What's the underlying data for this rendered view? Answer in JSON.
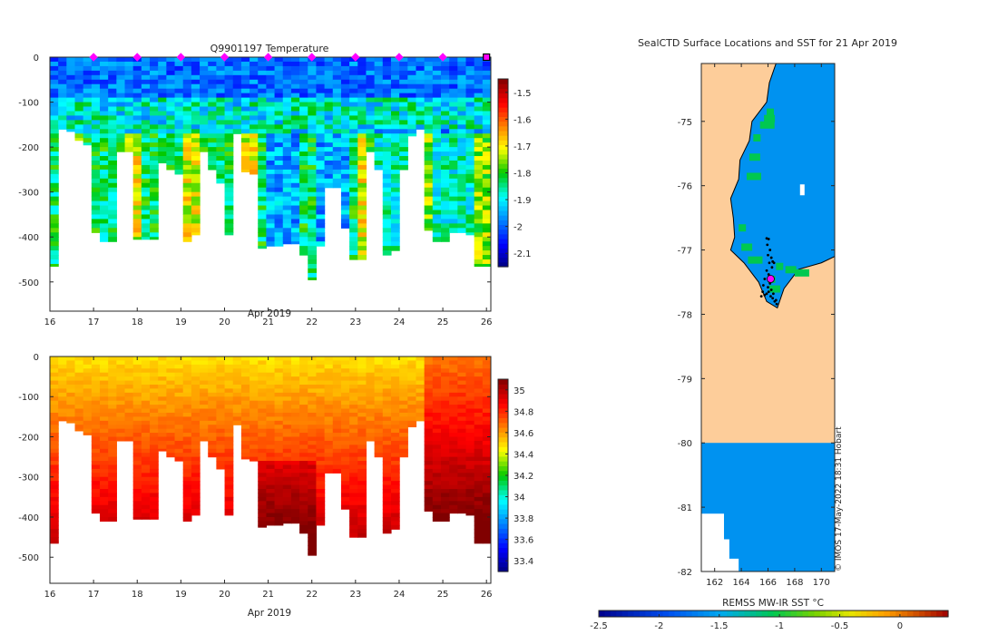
{
  "chart_data": [
    {
      "id": "temp",
      "type": "heatmap",
      "title": "Q9901197  Temperature",
      "xlabel": "Apr 2019",
      "ylabel": "",
      "xlim": [
        16,
        26.1
      ],
      "ylim": [
        -565,
        0
      ],
      "xticks": [
        16,
        17,
        18,
        19,
        20,
        21,
        22,
        23,
        24,
        25,
        26
      ],
      "xtick_labels": [
        "16",
        "17",
        "18",
        "19",
        "20",
        "21",
        "22",
        "23",
        "24",
        "25",
        "26"
      ],
      "yticks": [
        0,
        -100,
        -200,
        -300,
        -400,
        -500
      ],
      "ytick_labels": [
        "0",
        "-100",
        "-200",
        "-300",
        "-400",
        "-500"
      ],
      "profile_bottoms": [
        -465,
        -160,
        -165,
        -185,
        -195,
        -390,
        -410,
        -410,
        -210,
        -210,
        -405,
        -405,
        -405,
        -235,
        -250,
        -260,
        -410,
        -395,
        -210,
        -250,
        -280,
        -395,
        -170,
        -255,
        -260,
        -425,
        -420,
        -420,
        -415,
        -415,
        -440,
        -495,
        -420,
        -290,
        -290,
        -380,
        -450,
        -450,
        -210,
        -250,
        -440,
        -430,
        -250,
        -175,
        -160,
        -385,
        -410,
        -410,
        -390,
        -390,
        -395,
        -465,
        -465
      ],
      "surface_markers_x": [
        17,
        18,
        19,
        20,
        21,
        22,
        23,
        24,
        25
      ],
      "last_marker_x": 26,
      "marker_color": "#ff00ff",
      "colorbar": {
        "min": -2.15,
        "max": -1.45,
        "ticks": [
          -1.5,
          -1.6,
          -1.7,
          -1.8,
          -1.9,
          -2,
          -2.1
        ],
        "tick_labels": [
          "-1.5",
          "-1.6",
          "-1.7",
          "-1.8",
          "-1.9",
          "-2",
          "-2.1"
        ]
      }
    },
    {
      "id": "sal",
      "type": "heatmap",
      "title": "",
      "xlabel": "Apr 2019",
      "ylabel": "",
      "xlim": [
        16,
        26.1
      ],
      "ylim": [
        -565,
        0
      ],
      "xticks": [
        16,
        17,
        18,
        19,
        20,
        21,
        22,
        23,
        24,
        25,
        26
      ],
      "xtick_labels": [
        "16",
        "17",
        "18",
        "19",
        "20",
        "21",
        "22",
        "23",
        "24",
        "25",
        "26"
      ],
      "yticks": [
        0,
        -100,
        -200,
        -300,
        -400,
        -500
      ],
      "ytick_labels": [
        "0",
        "-100",
        "-200",
        "-300",
        "-400",
        "-500"
      ],
      "colorbar": {
        "min": 33.3,
        "max": 35.1,
        "ticks": [
          35,
          34.8,
          34.6,
          34.4,
          34.2,
          34,
          33.8,
          33.6,
          33.4
        ],
        "tick_labels": [
          "35",
          "34.8",
          "34.6",
          "34.4",
          "34.2",
          "34",
          "33.8",
          "33.6",
          "33.4"
        ]
      }
    },
    {
      "id": "map",
      "type": "heatmap",
      "title": "SealCTD Surface Locations and SST for 21 Apr 2019",
      "xlim": [
        161,
        171
      ],
      "ylim": [
        -82,
        -74.1
      ],
      "xticks": [
        162,
        164,
        166,
        168,
        170
      ],
      "xtick_labels": [
        "162",
        "164",
        "166",
        "168",
        "170"
      ],
      "yticks": [
        -75,
        -76,
        -77,
        -78,
        -79,
        -80,
        -81,
        -82
      ],
      "ytick_labels": [
        "-75",
        "-76",
        "-77",
        "-78",
        "-79",
        "-80",
        "-81",
        "-82"
      ],
      "ocean_sst_value": -1.6,
      "land_color": "#fdcd9a",
      "land_boundary_lat": -80,
      "colorbar_label": "REMSS MW-IR SST °C",
      "colorbar": {
        "min": -2.5,
        "max": 0.4,
        "ticks": [
          -2.5,
          -2,
          -1.5,
          -1,
          -0.5,
          0
        ],
        "tick_labels": [
          "-2.5",
          "-2",
          "-1.5",
          "-1",
          "-0.5",
          "0"
        ]
      },
      "seal_positions": [
        [
          165.9,
          -76.82
        ],
        [
          166.05,
          -76.83
        ],
        [
          165.95,
          -76.92
        ],
        [
          166.15,
          -77.0
        ],
        [
          166.0,
          -77.08
        ],
        [
          166.25,
          -77.12
        ],
        [
          166.1,
          -77.2
        ],
        [
          166.35,
          -77.18
        ],
        [
          166.3,
          -77.27
        ],
        [
          166.45,
          -77.2
        ],
        [
          165.9,
          -77.32
        ],
        [
          166.05,
          -77.38
        ],
        [
          165.75,
          -77.45
        ],
        [
          165.65,
          -77.55
        ],
        [
          165.6,
          -77.65
        ],
        [
          165.75,
          -77.7
        ],
        [
          165.9,
          -77.68
        ],
        [
          166.05,
          -77.65
        ],
        [
          166.2,
          -77.72
        ],
        [
          166.35,
          -77.75
        ],
        [
          166.5,
          -77.8
        ],
        [
          166.65,
          -77.84
        ],
        [
          166.25,
          -77.62
        ],
        [
          166.0,
          -77.58
        ],
        [
          166.4,
          -77.68
        ],
        [
          165.5,
          -77.72
        ],
        [
          166.6,
          -77.78
        ],
        [
          166.15,
          -77.52
        ]
      ],
      "latest_position": [
        166.2,
        -77.45
      ],
      "stamp": "© IMOS 17-May-2022 18:31 Hobart"
    }
  ]
}
